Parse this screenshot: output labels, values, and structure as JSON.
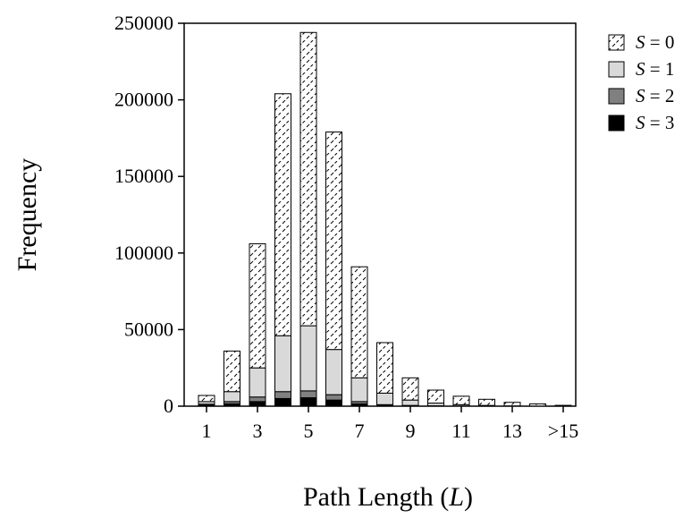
{
  "chart_data": {
    "type": "bar",
    "stacked": true,
    "categories": [
      "1",
      "2",
      "3",
      "4",
      "5",
      "6",
      "7",
      "8",
      "9",
      "10",
      "11",
      "12",
      "13",
      "14",
      ">15"
    ],
    "x_tick_labels": [
      "1",
      "3",
      "5",
      "7",
      "9",
      "11",
      "13",
      ">15"
    ],
    "x_tick_positions": [
      "1",
      "3",
      "5",
      "7",
      "9",
      "11",
      "13",
      ">15"
    ],
    "series": [
      {
        "name": "S = 3",
        "fill": "#000000",
        "values": [
          600,
          1500,
          3000,
          5000,
          5500,
          4000,
          1500,
          500,
          200,
          100,
          50,
          20,
          10,
          5,
          2
        ]
      },
      {
        "name": "S = 2",
        "fill": "#808080",
        "values": [
          700,
          1500,
          3000,
          4500,
          4500,
          3500,
          1500,
          500,
          300,
          150,
          80,
          40,
          20,
          10,
          5
        ]
      },
      {
        "name": "S = 1",
        "fill": "#d9d9d9",
        "values": [
          1700,
          6500,
          19000,
          36500,
          42500,
          29500,
          15500,
          7500,
          3500,
          1750,
          870,
          440,
          170,
          85,
          43
        ]
      },
      {
        "name": "S = 0",
        "fill": "hatch",
        "values": [
          4000,
          26500,
          81000,
          158000,
          191500,
          142000,
          72500,
          33000,
          14500,
          8500,
          5500,
          4000,
          2300,
          1400,
          500
        ]
      }
    ],
    "legend": {
      "placement": "right",
      "entries": [
        {
          "var": "S",
          "rest": " = 0"
        },
        {
          "var": "S",
          "rest": " = 1"
        },
        {
          "var": "S",
          "rest": " = 2"
        },
        {
          "var": "S",
          "rest": " = 3"
        }
      ]
    },
    "ylim": [
      0,
      250000
    ],
    "yticks": [
      0,
      50000,
      100000,
      150000,
      200000,
      250000
    ],
    "ylabel": "Frequency",
    "xlabel_text": "Path Length (",
    "xlabel_var": "L",
    "xlabel_end": ")",
    "grid": false,
    "colors": {
      "axis": "#000000",
      "bar_outline": "#000000",
      "hatch_dash": "#000000"
    }
  }
}
